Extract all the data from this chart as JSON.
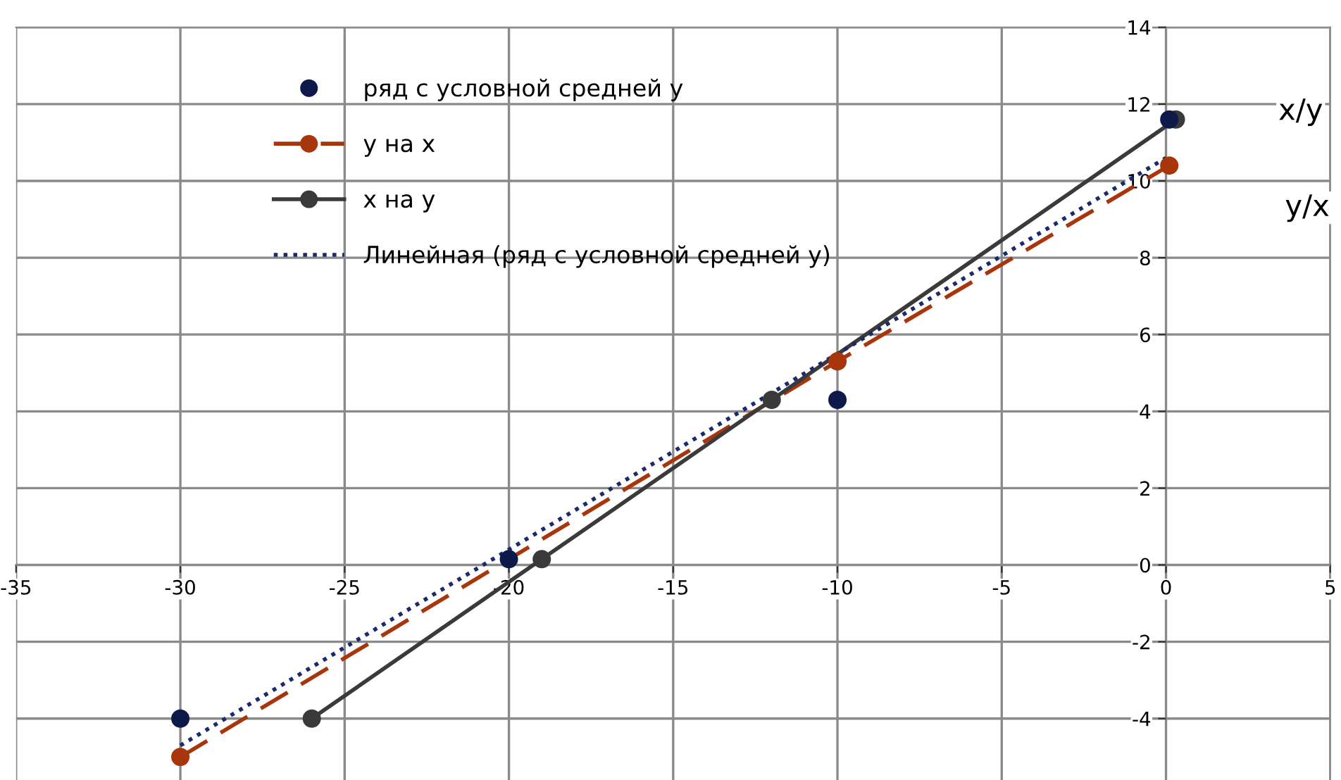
{
  "chart_data": {
    "type": "scatter",
    "xlim": [
      -35,
      5
    ],
    "ylim": [
      -5.6,
      14
    ],
    "xticks": [
      -35,
      -30,
      -25,
      -20,
      -15,
      -10,
      -5,
      0,
      5
    ],
    "yticks": [
      -4,
      -2,
      0,
      2,
      4,
      6,
      8,
      10,
      12,
      14
    ],
    "grid": true,
    "legend": "top left",
    "series": [
      {
        "name": "ряд с условной средней y",
        "color": "#0d1a4a",
        "marker": "circle",
        "x": [
          -30,
          -20,
          -10,
          0.1
        ],
        "values": [
          -4,
          0.15,
          4.3,
          11.6
        ]
      },
      {
        "name": "y на x",
        "type": "line",
        "color": "#a8360c",
        "marker": "circle",
        "line_style": "dashed",
        "x": [
          -30,
          -10,
          0.1
        ],
        "values": [
          -5,
          5.3,
          10.4
        ]
      },
      {
        "name": "x на y",
        "type": "line",
        "color": "#3a3a3a",
        "marker": "circle",
        "line_style": "solid",
        "x": [
          -26,
          -19,
          -12,
          0.3
        ],
        "values": [
          -4,
          0.15,
          4.3,
          11.6
        ]
      },
      {
        "name": "Линейная (ряд с условной средней y)",
        "type": "line",
        "color": "#1a2a6a",
        "marker": "none",
        "line_style": "dotted",
        "x": [
          -30,
          0
        ],
        "values": [
          -4.7,
          10.6
        ]
      }
    ],
    "annotations": [
      {
        "text": "x/y",
        "x": 4.1,
        "y": 11.8
      },
      {
        "text": "y/x",
        "x": 4.3,
        "y": 9.3
      }
    ]
  }
}
